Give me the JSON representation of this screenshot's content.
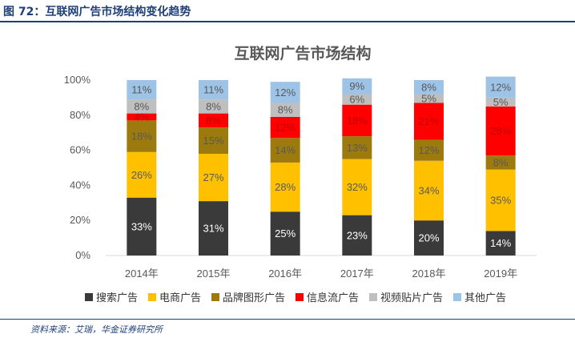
{
  "figure": {
    "caption": "图 72：互联网广告市场结构变化趋势",
    "source": "资料来源：艾瑞，华金证券研究所"
  },
  "chart_data": {
    "type": "bar",
    "stacked": true,
    "title": "互联网广告市场结构",
    "categories": [
      "2014年",
      "2015年",
      "2016年",
      "2017年",
      "2018年",
      "2019年"
    ],
    "yticks": [
      "0%",
      "20%",
      "40%",
      "60%",
      "80%",
      "100%"
    ],
    "ylim": [
      0,
      100
    ],
    "series": [
      {
        "name": "搜索广告",
        "color": "#3a3a3a",
        "label_color": "#ffffff",
        "values": [
          33,
          31,
          25,
          23,
          20,
          14
        ]
      },
      {
        "name": "电商广告",
        "color": "#ffc000",
        "label_color": "#595959",
        "values": [
          26,
          27,
          28,
          32,
          34,
          35
        ]
      },
      {
        "name": "品牌图形广告",
        "color": "#9c7a0e",
        "label_color": "#595959",
        "values": [
          18,
          15,
          14,
          13,
          12,
          8
        ]
      },
      {
        "name": "信息流广告",
        "color": "#ff0000",
        "label_color": "#c00000",
        "values": [
          4,
          8,
          12,
          18,
          21,
          28
        ]
      },
      {
        "name": "视频贴片广告",
        "color": "#bfbfbf",
        "label_color": "#595959",
        "values": [
          8,
          8,
          8,
          6,
          5,
          5
        ]
      },
      {
        "name": "其他广告",
        "color": "#9dc3e6",
        "label_color": "#595959",
        "values": [
          11,
          11,
          12,
          9,
          8,
          12
        ]
      }
    ]
  }
}
